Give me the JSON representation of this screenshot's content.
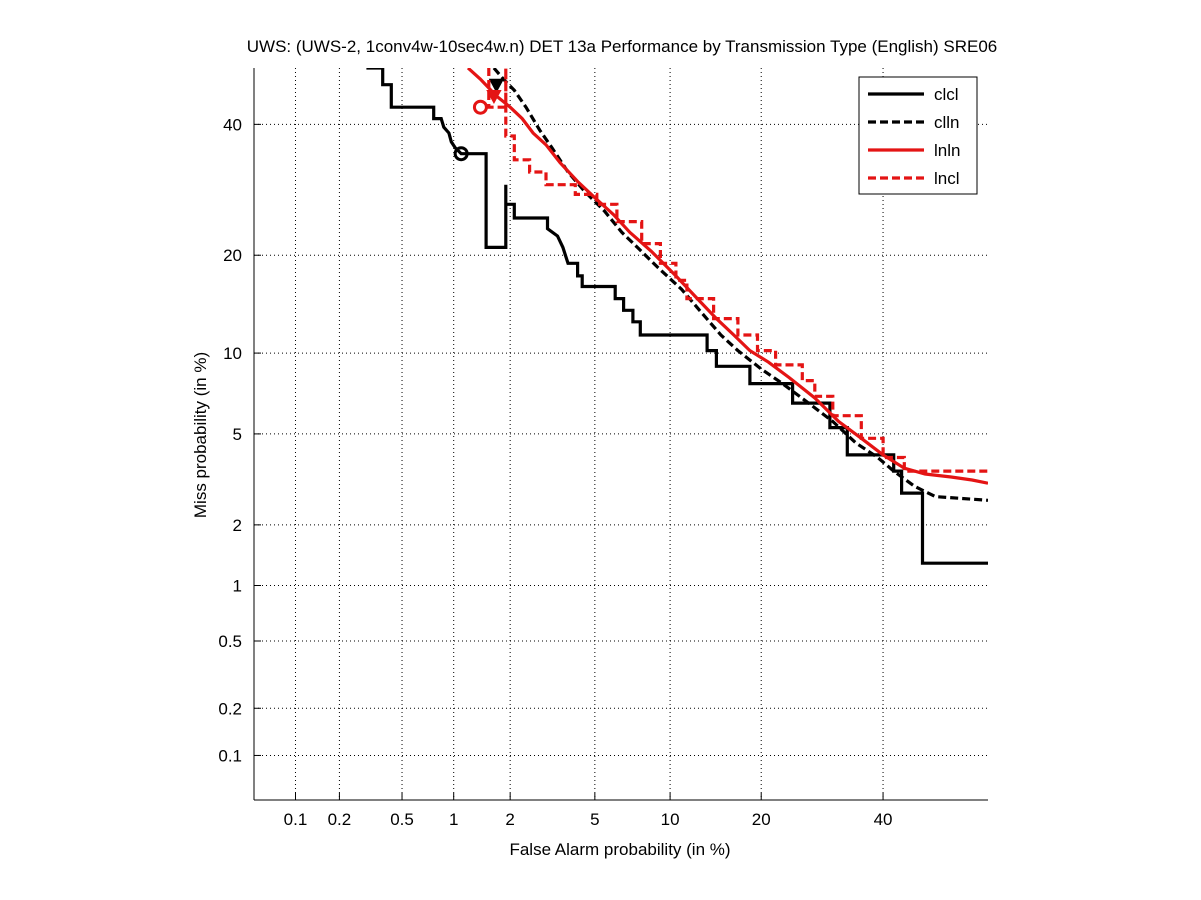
{
  "chart_data": {
    "type": "line",
    "title": "UWS: (UWS-2, 1conv4w-10sec4w.n) DET 13a Performance by Transmission Type (English) SRE06",
    "xlabel": "False Alarm probability (in %)",
    "ylabel": "Miss probability (in %)",
    "x_scale": "normal-deviate (probit)",
    "y_scale": "normal-deviate (probit)",
    "xlim": [
      0.05,
      60
    ],
    "ylim": [
      0.05,
      50
    ],
    "xticks": [
      0.1,
      0.2,
      0.5,
      1,
      2,
      5,
      10,
      20,
      40
    ],
    "xtick_labels": [
      "0.1",
      "0.2",
      "0.5",
      "1",
      "2",
      "5",
      "10",
      "20",
      "40"
    ],
    "yticks": [
      0.1,
      0.2,
      0.5,
      1,
      2,
      5,
      10,
      20,
      40
    ],
    "ytick_labels": [
      "0.1",
      "0.2",
      "0.5",
      "1",
      "2",
      "5",
      "10",
      "20",
      "40"
    ],
    "grid": true,
    "legend_position": "top-right",
    "series": [
      {
        "name": "clcl",
        "color": "#000000",
        "dash": "solid",
        "points": [
          [
            0.3,
            50
          ],
          [
            0.38,
            50
          ],
          [
            0.38,
            47
          ],
          [
            0.43,
            47
          ],
          [
            0.43,
            43
          ],
          [
            0.77,
            43
          ],
          [
            0.77,
            41
          ],
          [
            0.85,
            41
          ],
          [
            0.88,
            39.5
          ],
          [
            0.94,
            38.5
          ],
          [
            0.97,
            37
          ],
          [
            1.02,
            36
          ],
          [
            1.1,
            35
          ],
          [
            1.5,
            35
          ],
          [
            1.5,
            21
          ],
          [
            1.9,
            21
          ],
          [
            1.9,
            30
          ],
          [
            1.9,
            27
          ],
          [
            2.1,
            27
          ],
          [
            2.1,
            25
          ],
          [
            3.05,
            25
          ],
          [
            3.05,
            23.5
          ],
          [
            3.4,
            22.5
          ],
          [
            3.6,
            21
          ],
          [
            3.8,
            19
          ],
          [
            4.2,
            19
          ],
          [
            4.2,
            17.5
          ],
          [
            4.4,
            17.5
          ],
          [
            4.4,
            16.3
          ],
          [
            6.1,
            16.3
          ],
          [
            6.1,
            15
          ],
          [
            6.6,
            15
          ],
          [
            6.6,
            13.8
          ],
          [
            7.2,
            13.8
          ],
          [
            7.2,
            12.7
          ],
          [
            7.7,
            12.7
          ],
          [
            7.7,
            11.5
          ],
          [
            13.5,
            11.5
          ],
          [
            13.5,
            10.2
          ],
          [
            14.5,
            10.2
          ],
          [
            14.5,
            9.0
          ],
          [
            18.5,
            9.0
          ],
          [
            18.5,
            7.8
          ],
          [
            24.5,
            7.8
          ],
          [
            24.5,
            6.6
          ],
          [
            30.5,
            6.6
          ],
          [
            30.5,
            5.3
          ],
          [
            33.5,
            5.3
          ],
          [
            33.5,
            4.1
          ],
          [
            42,
            4.1
          ],
          [
            42,
            3.5
          ],
          [
            43.5,
            3.5
          ],
          [
            43.5,
            2.8
          ],
          [
            47.5,
            2.8
          ],
          [
            47.5,
            1.3
          ],
          [
            60,
            1.3
          ]
        ],
        "marker": {
          "type": "circle",
          "x": 1.1,
          "y": 35
        }
      },
      {
        "name": "clln",
        "color": "#000000",
        "dash": "dashed",
        "points": [
          [
            1.65,
            50
          ],
          [
            1.85,
            48
          ],
          [
            2.1,
            46
          ],
          [
            2.4,
            43
          ],
          [
            2.8,
            39
          ],
          [
            3.2,
            36
          ],
          [
            3.8,
            32
          ],
          [
            4.5,
            29
          ],
          [
            5.5,
            26
          ],
          [
            6.5,
            23
          ],
          [
            7.5,
            21
          ],
          [
            9,
            18.5
          ],
          [
            11,
            16
          ],
          [
            13,
            13.5
          ],
          [
            15,
            11.5
          ],
          [
            17,
            10.2
          ],
          [
            20,
            8.8
          ],
          [
            23,
            7.8
          ],
          [
            27,
            6.6
          ],
          [
            31,
            5.6
          ],
          [
            35,
            4.6
          ],
          [
            39,
            4.0
          ],
          [
            42,
            3.5
          ],
          [
            46,
            3.0
          ],
          [
            50,
            2.7
          ],
          [
            60,
            2.6
          ]
        ],
        "marker": {
          "type": "triangle",
          "x": 1.7,
          "y": 47
        }
      },
      {
        "name": "lnln",
        "color": "#e41414",
        "dash": "solid",
        "points": [
          [
            1.2,
            50
          ],
          [
            1.4,
            48
          ],
          [
            1.7,
            45
          ],
          [
            2.0,
            43
          ],
          [
            2.3,
            41
          ],
          [
            2.6,
            38.5
          ],
          [
            3.0,
            36.5
          ],
          [
            3.5,
            33.5
          ],
          [
            4.2,
            30.5
          ],
          [
            5.0,
            28
          ],
          [
            6.0,
            25.5
          ],
          [
            7.0,
            23
          ],
          [
            8.5,
            20.5
          ],
          [
            10.5,
            17.5
          ],
          [
            12.5,
            15
          ],
          [
            14.5,
            13
          ],
          [
            16.5,
            11.5
          ],
          [
            18.5,
            10.2
          ],
          [
            21,
            9.3
          ],
          [
            24,
            8.2
          ],
          [
            28,
            6.9
          ],
          [
            32,
            5.6
          ],
          [
            36,
            4.8
          ],
          [
            40,
            4.1
          ],
          [
            44,
            3.6
          ],
          [
            48,
            3.4
          ],
          [
            53,
            3.3
          ],
          [
            57,
            3.2
          ],
          [
            60,
            3.1
          ]
        ],
        "marker": {
          "type": "circle",
          "x": 1.4,
          "y": 43
        }
      },
      {
        "name": "lncl",
        "color": "#e41414",
        "dash": "dashed",
        "points": [
          [
            1.55,
            50
          ],
          [
            1.55,
            43
          ],
          [
            1.9,
            43
          ],
          [
            1.9,
            50
          ],
          [
            1.9,
            38
          ],
          [
            2.1,
            38
          ],
          [
            2.1,
            34
          ],
          [
            2.5,
            34
          ],
          [
            2.5,
            32
          ],
          [
            3.0,
            32
          ],
          [
            3.0,
            30
          ],
          [
            4.1,
            30
          ],
          [
            4.1,
            28.5
          ],
          [
            5.1,
            28.5
          ],
          [
            5.1,
            27
          ],
          [
            6.2,
            27
          ],
          [
            6.2,
            24.5
          ],
          [
            7.8,
            24.5
          ],
          [
            7.8,
            21.5
          ],
          [
            9.2,
            21.5
          ],
          [
            9.2,
            19
          ],
          [
            10.5,
            19
          ],
          [
            10.5,
            17
          ],
          [
            11.5,
            17
          ],
          [
            11.5,
            15
          ],
          [
            14.2,
            15
          ],
          [
            14.2,
            13
          ],
          [
            17,
            13
          ],
          [
            17,
            11.5
          ],
          [
            19.5,
            11.5
          ],
          [
            19.5,
            10.2
          ],
          [
            22,
            10.2
          ],
          [
            22,
            9.1
          ],
          [
            26,
            9.1
          ],
          [
            26,
            8.0
          ],
          [
            28,
            8.0
          ],
          [
            28,
            7.0
          ],
          [
            31,
            7.0
          ],
          [
            31,
            5.9
          ],
          [
            36,
            5.9
          ],
          [
            36,
            4.8
          ],
          [
            40,
            4.8
          ],
          [
            40,
            4.0
          ],
          [
            44,
            4.0
          ],
          [
            44,
            3.5
          ],
          [
            60,
            3.5
          ]
        ],
        "marker": {
          "type": "triangle",
          "x": 1.65,
          "y": 45
        }
      }
    ]
  }
}
